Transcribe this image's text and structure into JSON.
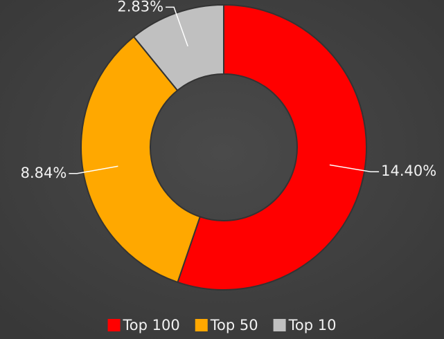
{
  "chart_data": {
    "type": "donut",
    "categories": [
      "Top 100",
      "Top 50",
      "Top 10"
    ],
    "values": [
      14.4,
      8.84,
      2.83
    ],
    "value_labels": [
      "14.40%",
      "8.84%",
      "2.83%"
    ],
    "colors": [
      "#ff0000",
      "#ffa800",
      "#c0c0c0"
    ],
    "legend": "bottom"
  }
}
